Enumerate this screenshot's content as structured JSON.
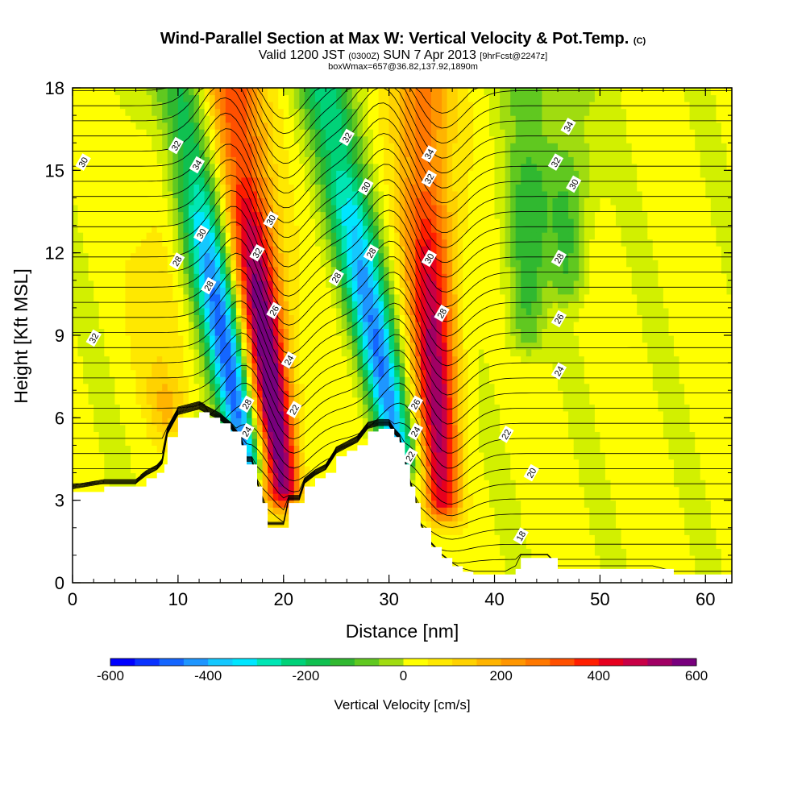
{
  "title": {
    "main": "Wind-Parallel Section at Max W: Vertical Velocity & Pot.Temp.",
    "main_tag": "(C)",
    "valid": "Valid 1200 JST",
    "valid_utc": "(0300Z)",
    "valid_date": "SUN 7 Apr 2013",
    "forecast": "[9hrFcst@2247z]",
    "box": "boxWmax=657@36.82,137.92,1890m"
  },
  "chart_data": {
    "type": "heatmap",
    "xlabel": "Distance [nm]",
    "ylabel": "Height [Kft MSL]",
    "xlim": [
      0,
      62.5
    ],
    "ylim": [
      0,
      18
    ],
    "x_ticks": [
      0,
      10,
      20,
      30,
      40,
      50,
      60
    ],
    "y_ticks": [
      0,
      3,
      6,
      9,
      12,
      15,
      18
    ],
    "colorbar": {
      "label": "Vertical Velocity [cm/s]",
      "min": -600,
      "max": 600,
      "step": 50,
      "tick_values": [
        -600,
        -400,
        -200,
        0,
        200,
        400,
        600
      ],
      "colors": [
        "#0000ff",
        "#0a32ff",
        "#1466ff",
        "#1e96ff",
        "#14c8ff",
        "#00e6ff",
        "#00e6b4",
        "#00d278",
        "#10c050",
        "#30b830",
        "#60c820",
        "#a0dc10",
        "#d2f000",
        "#ffff00",
        "#ffe800",
        "#ffd200",
        "#ffb400",
        "#ff9600",
        "#ff7800",
        "#ff5000",
        "#ff1e00",
        "#e6001e",
        "#c80046",
        "#a00064",
        "#78007d"
      ]
    },
    "terrain_kft": [
      [
        0,
        3.3
      ],
      [
        3,
        3.5
      ],
      [
        6,
        3.5
      ],
      [
        7,
        3.8
      ],
      [
        8,
        4.0
      ],
      [
        8.7,
        4.3
      ],
      [
        9,
        5.3
      ],
      [
        10,
        6.0
      ],
      [
        12,
        6.2
      ],
      [
        13,
        6.0
      ],
      [
        14,
        5.8
      ],
      [
        15,
        5.5
      ],
      [
        16,
        5.0
      ],
      [
        16.5,
        4.3
      ],
      [
        17,
        4.3
      ],
      [
        17.5,
        3.5
      ],
      [
        18,
        2.9
      ],
      [
        18.5,
        2.0
      ],
      [
        20,
        2.0
      ],
      [
        20.5,
        2.9
      ],
      [
        21.5,
        2.9
      ],
      [
        22,
        3.5
      ],
      [
        23,
        3.8
      ],
      [
        24,
        4.0
      ],
      [
        25,
        4.6
      ],
      [
        26,
        4.8
      ],
      [
        27,
        5.0
      ],
      [
        28,
        5.5
      ],
      [
        29,
        5.6
      ],
      [
        30,
        5.6
      ],
      [
        30.5,
        5.3
      ],
      [
        31,
        5.1
      ],
      [
        31.5,
        4.3
      ],
      [
        32,
        3.5
      ],
      [
        32.5,
        2.9
      ],
      [
        33,
        2.0
      ],
      [
        34,
        1.3
      ],
      [
        35,
        0.9
      ],
      [
        36,
        0.6
      ],
      [
        37,
        0.4
      ],
      [
        38,
        0.3
      ],
      [
        39,
        0.3
      ],
      [
        40,
        0.3
      ],
      [
        41,
        0.3
      ],
      [
        42,
        0.5
      ],
      [
        42.5,
        0.9
      ],
      [
        43,
        0.9
      ],
      [
        45,
        0.9
      ],
      [
        46,
        0.5
      ],
      [
        47,
        0.5
      ],
      [
        48,
        0.5
      ],
      [
        50,
        0.5
      ],
      [
        52,
        0.5
      ],
      [
        55,
        0.5
      ],
      [
        57,
        0.3
      ],
      [
        60,
        0.3
      ],
      [
        62.5,
        0.3
      ]
    ],
    "vertical_velocity_features": [
      {
        "kind": "downdraft",
        "base": [
          16.5,
          4.5
        ],
        "top": [
          10,
          18
        ],
        "peak": -600
      },
      {
        "kind": "updraft",
        "base": [
          20,
          3.5
        ],
        "top": [
          15,
          18
        ],
        "peak": 650
      },
      {
        "kind": "downdraft",
        "base": [
          31,
          4.5
        ],
        "top": [
          24,
          18
        ],
        "peak": -500
      },
      {
        "kind": "updraft",
        "base": [
          35,
          3.0
        ],
        "top": [
          33,
          18
        ],
        "peak": 500
      },
      {
        "kind": "downdraft",
        "base": [
          43,
          9
        ],
        "top": [
          43,
          18
        ],
        "peak": -200
      },
      {
        "kind": "downdraft",
        "base": [
          47,
          11
        ],
        "top": [
          47,
          18
        ],
        "peak": -180
      },
      {
        "kind": "updraft",
        "base": [
          9,
          6
        ],
        "top": [
          9,
          8
        ],
        "peak": 150
      }
    ],
    "potential_temperature_labels": [
      {
        "text": "30",
        "x": 1.0,
        "y": 15.3
      },
      {
        "text": "32",
        "x": 2.0,
        "y": 8.9
      },
      {
        "text": "32",
        "x": 9.8,
        "y": 15.9
      },
      {
        "text": "34",
        "x": 11.8,
        "y": 15.2
      },
      {
        "text": "30",
        "x": 12.2,
        "y": 12.7
      },
      {
        "text": "28",
        "x": 9.9,
        "y": 11.7
      },
      {
        "text": "28",
        "x": 12.9,
        "y": 10.8
      },
      {
        "text": "30",
        "x": 18.8,
        "y": 13.2
      },
      {
        "text": "32",
        "x": 17.5,
        "y": 12.0
      },
      {
        "text": "26",
        "x": 19.1,
        "y": 9.9
      },
      {
        "text": "24",
        "x": 20.5,
        "y": 8.1
      },
      {
        "text": "22",
        "x": 21.0,
        "y": 6.3
      },
      {
        "text": "28",
        "x": 16.5,
        "y": 6.5
      },
      {
        "text": "24",
        "x": 16.5,
        "y": 5.5
      },
      {
        "text": "32",
        "x": 26.0,
        "y": 16.2
      },
      {
        "text": "30",
        "x": 27.8,
        "y": 14.4
      },
      {
        "text": "28",
        "x": 28.3,
        "y": 12.0
      },
      {
        "text": "28",
        "x": 25.0,
        "y": 11.1
      },
      {
        "text": "26",
        "x": 32.5,
        "y": 6.5
      },
      {
        "text": "24",
        "x": 32.5,
        "y": 5.5
      },
      {
        "text": "22",
        "x": 32.0,
        "y": 4.6
      },
      {
        "text": "34",
        "x": 33.8,
        "y": 15.6
      },
      {
        "text": "32",
        "x": 33.8,
        "y": 14.7
      },
      {
        "text": "30",
        "x": 33.8,
        "y": 11.8
      },
      {
        "text": "28",
        "x": 35.0,
        "y": 9.8
      },
      {
        "text": "34",
        "x": 47.0,
        "y": 16.6
      },
      {
        "text": "32",
        "x": 45.8,
        "y": 15.3
      },
      {
        "text": "30",
        "x": 47.5,
        "y": 14.5
      },
      {
        "text": "28",
        "x": 46.1,
        "y": 11.8
      },
      {
        "text": "26",
        "x": 46.1,
        "y": 9.6
      },
      {
        "text": "24",
        "x": 46.1,
        "y": 7.7
      },
      {
        "text": "22",
        "x": 41.1,
        "y": 5.4
      },
      {
        "text": "20",
        "x": 43.5,
        "y": 4.0
      },
      {
        "text": "18",
        "x": 42.5,
        "y": 1.7
      }
    ]
  }
}
